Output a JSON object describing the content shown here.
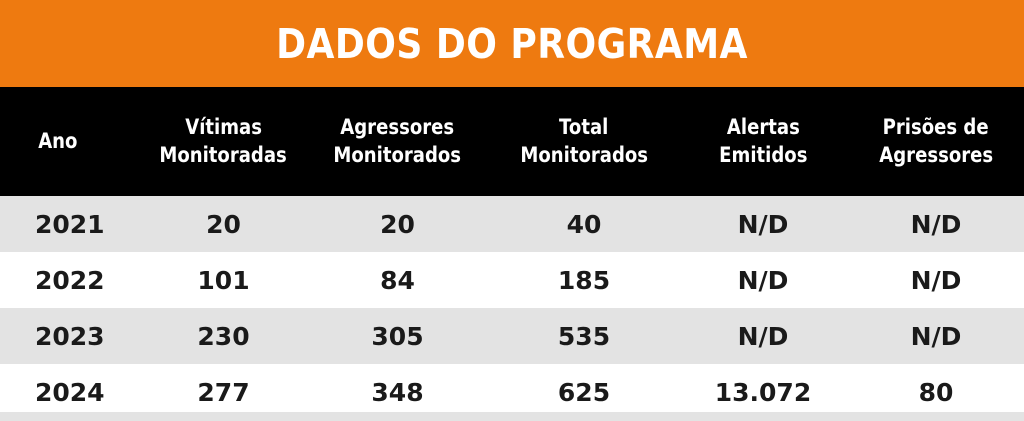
{
  "title": "DADOS DO PROGRAMA",
  "colors": {
    "title_bar": "#ee7a10",
    "header_bg": "#000000",
    "row_shaded": "#e3e3e3",
    "row_plain": "#ffffff"
  },
  "table": {
    "headers": [
      [
        "Ano"
      ],
      [
        "Vítimas",
        "Monitoradas"
      ],
      [
        "Agressores",
        "Monitorados"
      ],
      [
        "Total",
        "Monitorados"
      ],
      [
        "Alertas",
        "Emitidos"
      ],
      [
        "Prisões de",
        "Agressores"
      ]
    ],
    "rows": [
      [
        "2021",
        "20",
        "20",
        "40",
        "N/D",
        "N/D"
      ],
      [
        "2022",
        "101",
        "84",
        "185",
        "N/D",
        "N/D"
      ],
      [
        "2023",
        "230",
        "305",
        "535",
        "N/D",
        "N/D"
      ],
      [
        "2024",
        "277",
        "348",
        "625",
        "13.072",
        "80"
      ]
    ]
  }
}
